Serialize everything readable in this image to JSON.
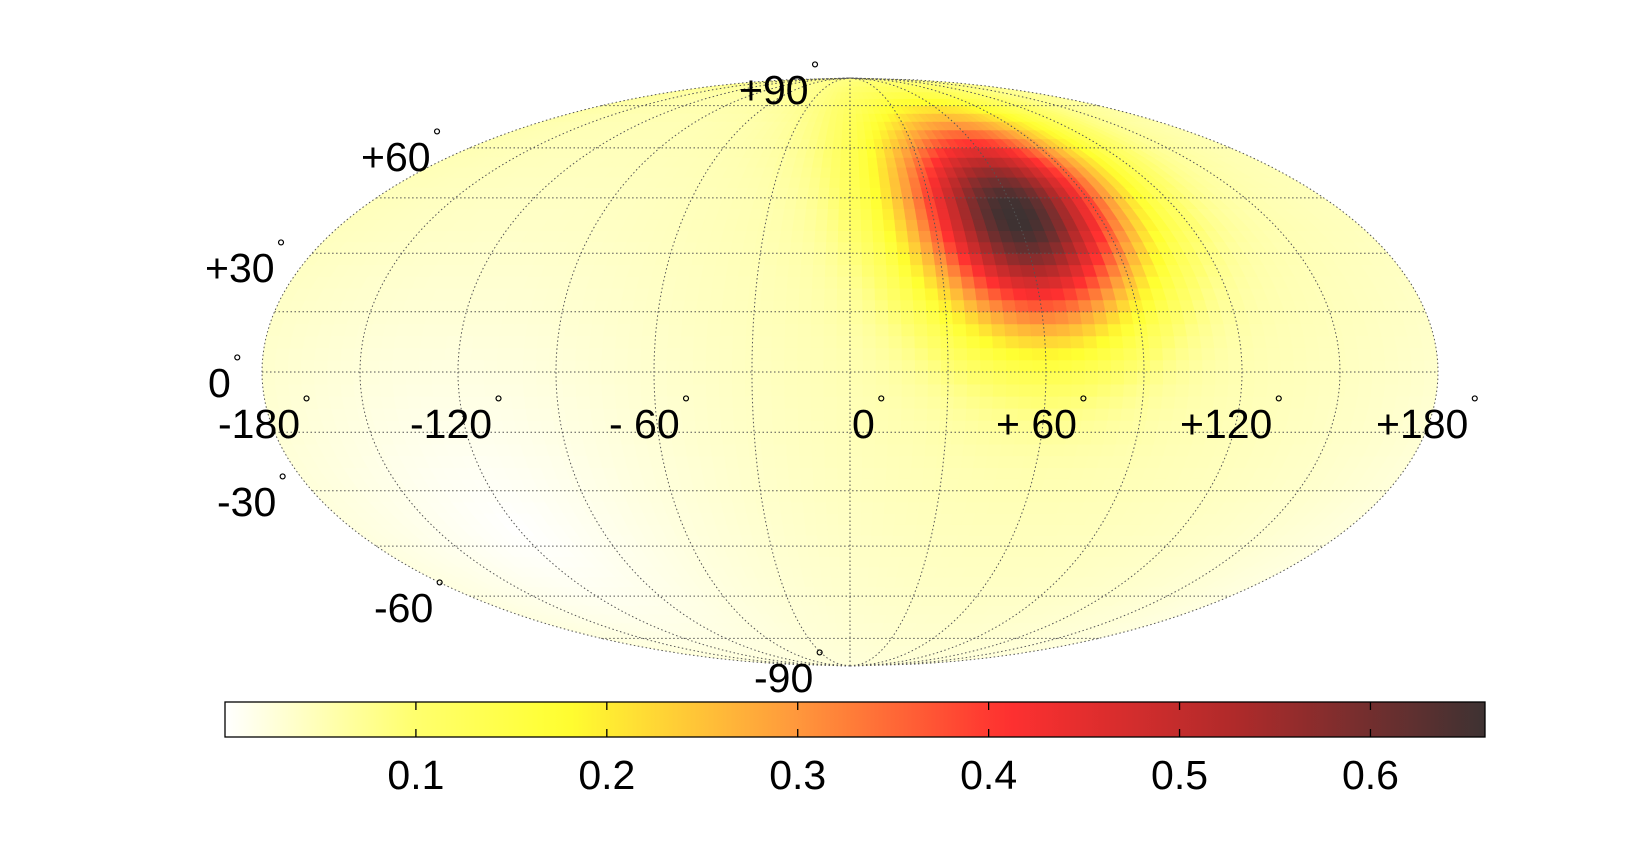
{
  "chart_data": {
    "type": "heatmap",
    "projection": "mollweide",
    "colormap": "white-yellow-orange-red-dark",
    "colormap_stops": [
      "#ffffff",
      "#ffff6e",
      "#ffff30",
      "#ff9a3c",
      "#ff3030",
      "#b02a2a",
      "#3e3232"
    ],
    "grid": true,
    "peak": {
      "lon": 60,
      "lat": 40,
      "value": 0.66
    },
    "color_range": [
      0,
      0.66
    ],
    "longitude_ticks": [
      -180,
      -120,
      -60,
      0,
      60,
      120,
      180
    ],
    "latitude_ticks": [
      90,
      60,
      30,
      0,
      -30,
      -60,
      -90
    ],
    "longitude_labels": [
      "-180",
      "-120",
      "- 60",
      "0",
      "+ 60",
      "+120",
      "+180"
    ],
    "latitude_labels": [
      "+90",
      "+60",
      "+30",
      "0",
      "-30",
      "-60",
      "-90"
    ],
    "degree_symbol": "°",
    "colorbar": {
      "ticks": [
        0.1,
        0.2,
        0.3,
        0.4,
        0.5,
        0.6
      ],
      "tick_labels": [
        "0.1",
        "0.2",
        "0.3",
        "0.4",
        "0.5",
        "0.6"
      ],
      "range": [
        0,
        0.66
      ]
    }
  }
}
